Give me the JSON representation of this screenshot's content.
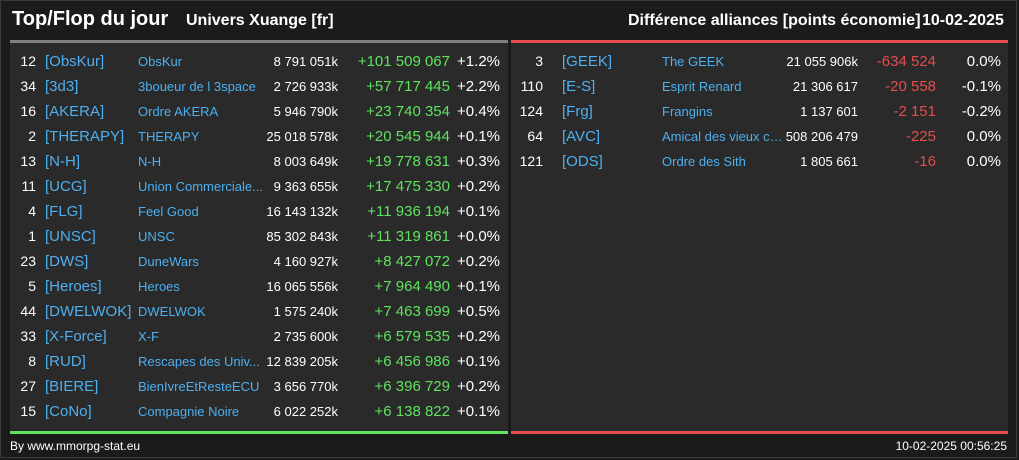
{
  "header": {
    "title": "Top/Flop du jour",
    "subtitle": "Univers Xuange [fr]",
    "right_title": "Différence alliances [points économie]",
    "date": "10-02-2025"
  },
  "top": [
    {
      "rank": "12",
      "tag": "[ObsKur]",
      "name": "ObsKur",
      "points": "8 791 051k",
      "diff": "+101 509 067",
      "pct": "+1.2%"
    },
    {
      "rank": "34",
      "tag": "[3d3]",
      "name": "3boueur de l 3space",
      "points": "2 726 933k",
      "diff": "+57 717 445",
      "pct": "+2.2%"
    },
    {
      "rank": "16",
      "tag": "[AKERA]",
      "name": "Ordre AKERA",
      "points": "5 946 790k",
      "diff": "+23 740 354",
      "pct": "+0.4%"
    },
    {
      "rank": "2",
      "tag": "[THERAPY]",
      "name": "THERAPY",
      "points": "25 018 578k",
      "diff": "+20 545 944",
      "pct": "+0.1%"
    },
    {
      "rank": "13",
      "tag": "[N-H]",
      "name": "N-H",
      "points": "8 003 649k",
      "diff": "+19 778 631",
      "pct": "+0.3%"
    },
    {
      "rank": "11",
      "tag": "[UCG]",
      "name": "Union Commerciale...",
      "points": "9 363 655k",
      "diff": "+17 475 330",
      "pct": "+0.2%"
    },
    {
      "rank": "4",
      "tag": "[FLG]",
      "name": "Feel Good",
      "points": "16 143 132k",
      "diff": "+11 936 194",
      "pct": "+0.1%"
    },
    {
      "rank": "1",
      "tag": "[UNSC]",
      "name": "UNSC",
      "points": "85 302 843k",
      "diff": "+11 319 861",
      "pct": "+0.0%"
    },
    {
      "rank": "23",
      "tag": "[DWS]",
      "name": "DuneWars",
      "points": "4 160 927k",
      "diff": "+8 427 072",
      "pct": "+0.2%"
    },
    {
      "rank": "5",
      "tag": "[Heroes]",
      "name": "Heroes",
      "points": "16 065 556k",
      "diff": "+7 964 490",
      "pct": "+0.1%"
    },
    {
      "rank": "44",
      "tag": "[DWELWOK]",
      "name": "DWELWOK",
      "points": "1 575 240k",
      "diff": "+7 463 699",
      "pct": "+0.5%"
    },
    {
      "rank": "33",
      "tag": "[X-Force]",
      "name": "X-F",
      "points": "2 735 600k",
      "diff": "+6 579 535",
      "pct": "+0.2%"
    },
    {
      "rank": "8",
      "tag": "[RUD]",
      "name": "Rescapes des Univ...",
      "points": "12 839 205k",
      "diff": "+6 456 986",
      "pct": "+0.1%"
    },
    {
      "rank": "27",
      "tag": "[BIERE]",
      "name": "BienIvreEtResteECU",
      "points": "3 656 770k",
      "diff": "+6 396 729",
      "pct": "+0.2%"
    },
    {
      "rank": "15",
      "tag": "[CoNo]",
      "name": "Compagnie Noire",
      "points": "6 022 252k",
      "diff": "+6 138 822",
      "pct": "+0.1%"
    }
  ],
  "flop": [
    {
      "rank": "3",
      "tag": "[GEEK]",
      "name": "The GEEK",
      "points": "21 055 906k",
      "diff": "-634 524",
      "pct": "0.0%"
    },
    {
      "rank": "110",
      "tag": "[E-S]",
      "name": "Esprit Renard",
      "points": "21 306 617",
      "diff": "-20 558",
      "pct": "-0.1%"
    },
    {
      "rank": "124",
      "tag": "[Frg]",
      "name": "Frangins",
      "points": "1 137 601",
      "diff": "-2 151",
      "pct": "-0.2%"
    },
    {
      "rank": "64",
      "tag": "[AVC]",
      "name": "Amical des vieux co...",
      "points": "508 206 479",
      "diff": "-225",
      "pct": "0.0%"
    },
    {
      "rank": "121",
      "tag": "[ODS]",
      "name": "Ordre des Sith",
      "points": "1 805 661",
      "diff": "-16",
      "pct": "0.0%"
    }
  ],
  "footer": {
    "credit": "By www.mmorpg-stat.eu",
    "timestamp": "10-02-2025 00:56:25"
  },
  "colors": {
    "positive": "#5fe35f",
    "negative": "#e64c4c",
    "tag": "#4db0f0"
  }
}
